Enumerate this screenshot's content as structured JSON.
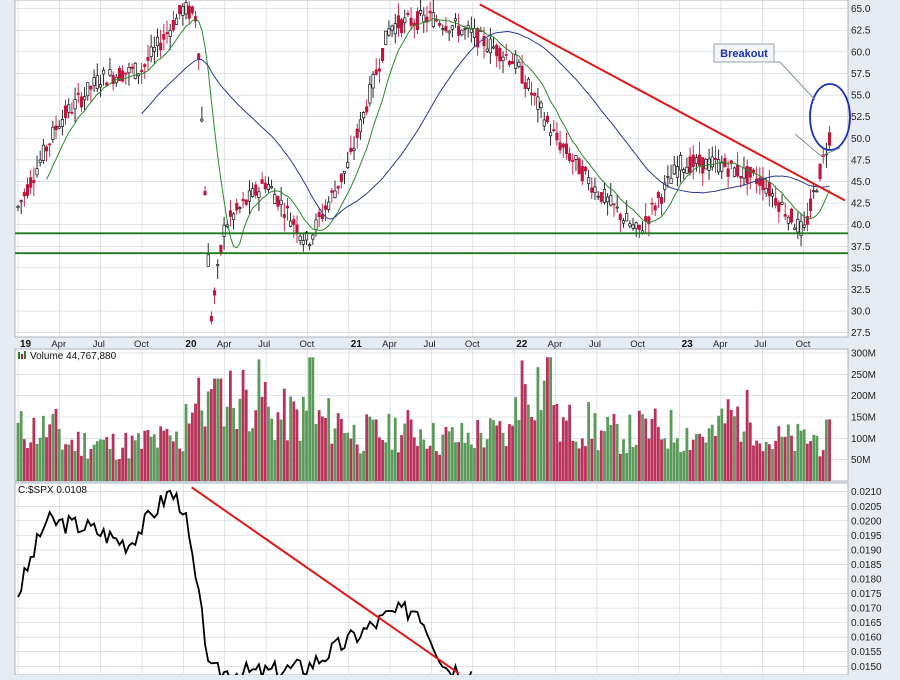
{
  "colors": {
    "background": "#e6ecf3",
    "panel_bg": "#ffffff",
    "grid": "#c9d3dd",
    "up_candle": "#2e7d2e",
    "down_candle": "#c0143c",
    "sma_short": "#2a8a2a",
    "sma_long": "#2f3a8f",
    "support": "#1e7a1e",
    "trendline": "#e01818",
    "breakout_circle": "#1c2fb8",
    "volume_up": "#5a9a5a",
    "volume_down": "#b8325a",
    "ratio_line": "#000000"
  },
  "annotations": {
    "breakout_label": "Breakout"
  },
  "price_panel": {
    "y_ticks": [
      "65.0",
      "62.5",
      "60.0",
      "57.5",
      "55.0",
      "52.5",
      "50.0",
      "47.5",
      "45.0",
      "42.5",
      "40.0",
      "37.5",
      "35.0",
      "32.5",
      "30.0",
      "27.5"
    ]
  },
  "x_axis": {
    "labels": [
      {
        "text": "19",
        "bold": true
      },
      {
        "text": "Apr",
        "bold": false
      },
      {
        "text": "Jul",
        "bold": false
      },
      {
        "text": "Oct",
        "bold": false
      },
      {
        "text": "20",
        "bold": true
      },
      {
        "text": "Apr",
        "bold": false
      },
      {
        "text": "Jul",
        "bold": false
      },
      {
        "text": "Oct",
        "bold": false
      },
      {
        "text": "21",
        "bold": true
      },
      {
        "text": "Apr",
        "bold": false
      },
      {
        "text": "Jul",
        "bold": false
      },
      {
        "text": "Oct",
        "bold": false
      },
      {
        "text": "22",
        "bold": true
      },
      {
        "text": "Apr",
        "bold": false
      },
      {
        "text": "Jul",
        "bold": false
      },
      {
        "text": "Oct",
        "bold": false
      },
      {
        "text": "23",
        "bold": true
      },
      {
        "text": "Apr",
        "bold": false
      },
      {
        "text": "Jul",
        "bold": false
      },
      {
        "text": "Oct",
        "bold": false
      }
    ]
  },
  "volume_panel": {
    "title": "Volume 44,767,880",
    "y_ticks": [
      "300M",
      "250M",
      "200M",
      "150M",
      "100M",
      "50M"
    ]
  },
  "ratio_panel": {
    "title": "C:$SPX 0.0108",
    "y_ticks": [
      "0.0210",
      "0.0205",
      "0.0200",
      "0.0195",
      "0.0190",
      "0.0185",
      "0.0180",
      "0.0175",
      "0.0170",
      "0.0165",
      "0.0160",
      "0.0155",
      "0.0150"
    ]
  },
  "chart_data": [
    {
      "type": "line",
      "panel": "price",
      "x": [
        "2019-01",
        "2019-04",
        "2019-07",
        "2019-10",
        "2020-01",
        "2020-02",
        "2020-03",
        "2020-04",
        "2020-07",
        "2020-10",
        "2021-01",
        "2021-04",
        "2021-07",
        "2021-10",
        "2022-01",
        "2022-04",
        "2022-07",
        "2022-10",
        "2023-01",
        "2023-04",
        "2023-07",
        "2023-10",
        "2023-12"
      ],
      "series": [
        {
          "values": [
            42,
            52,
            57,
            58,
            65,
            64,
            29,
            40,
            45,
            38,
            47,
            63,
            64,
            62,
            59,
            50,
            44,
            39,
            47,
            47,
            45,
            39,
            51
          ]
        }
      ],
      "support_levels": [
        39.0,
        36.7
      ],
      "ylim": [
        27,
        66
      ]
    },
    {
      "type": "bar",
      "panel": "volume",
      "categories": [
        "2019-Q1",
        "2019-Q2",
        "2019-Q3",
        "2019-Q4",
        "2020-Q1",
        "2020-Q2",
        "2020-Q3",
        "2020-Q4",
        "2021-Q1",
        "2021-Q2",
        "2021-Q3",
        "2021-Q4",
        "2022-Q1",
        "2022-Q2",
        "2022-Q3",
        "2022-Q4",
        "2023-Q1",
        "2023-Q2",
        "2023-Q3",
        "2023-Q4"
      ],
      "values": [
        120,
        90,
        85,
        95,
        180,
        200,
        150,
        140,
        110,
        120,
        100,
        110,
        230,
        130,
        110,
        120,
        110,
        150,
        95,
        100
      ],
      "ylim": [
        0,
        300
      ]
    },
    {
      "type": "line",
      "panel": "relative_strength",
      "x": [
        "2019-01",
        "2019-03",
        "2019-06",
        "2019-09",
        "2019-12",
        "2020-01",
        "2020-03",
        "2020-07",
        "2020-10",
        "2021-04",
        "2021-06",
        "2021-08",
        "2021-10"
      ],
      "series": [
        {
          "values": [
            0.0175,
            0.02,
            0.0198,
            0.0192,
            0.021,
            0.0205,
            0.0148,
            0.0148,
            0.015,
            0.0168,
            0.017,
            0.015,
            0.0148
          ]
        }
      ],
      "ylim": [
        0.0147,
        0.0213
      ]
    }
  ]
}
